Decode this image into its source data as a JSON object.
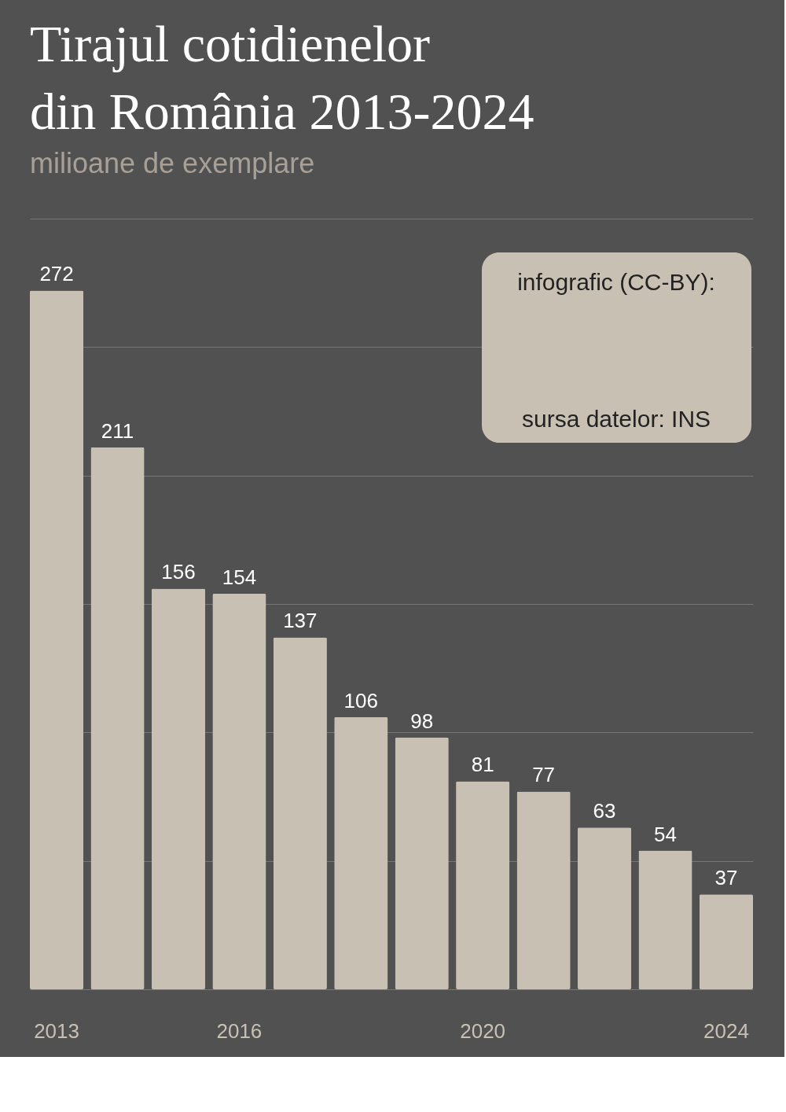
{
  "chart_data": {
    "type": "bar",
    "title": "Tirajul cotidienelor din România 2013-2024",
    "subtitle": "milioane de exemplare",
    "categories": [
      "2013",
      null,
      null,
      "2016",
      null,
      null,
      null,
      "2020",
      null,
      null,
      null,
      "2024"
    ],
    "values": [
      272,
      211,
      156,
      154,
      137,
      106,
      98,
      81,
      77,
      63,
      54,
      37
    ],
    "color": "#c9c0b4",
    "ylim": [
      0,
      300
    ],
    "yticks": [
      {
        "value": 0,
        "label": null
      },
      {
        "value": 50,
        "label": null
      },
      {
        "value": 100,
        "label": null
      },
      {
        "value": 150,
        "label": null
      },
      {
        "value": 200,
        "label": null
      },
      {
        "value": 250,
        "label": null
      },
      {
        "value": 300,
        "label": null
      }
    ],
    "grid": "y",
    "tick_labels": "x",
    "data_labels": true,
    "annotations": [
      "infografic (CC-BY):",
      "sursa datelor: INS"
    ]
  }
}
